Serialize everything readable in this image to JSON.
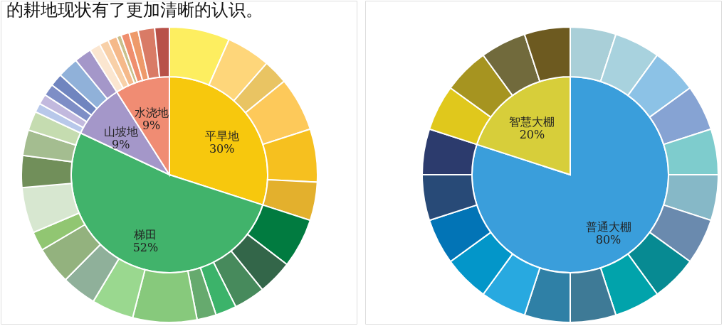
{
  "chart_data": [
    {
      "type": "pie",
      "annotations": [
        "的耕地现状有了更加清晰的认识。"
      ],
      "series": [
        {
          "values": [
            30,
            52,
            9,
            9
          ],
          "value_labels": [
            "平旱地\n30%",
            "梯田\n52%",
            "山坡地\n9%",
            "水浇地\n9%"
          ],
          "colors": [
            "#f7c80d",
            "#41b36b",
            "#a497c9",
            "#f08c73"
          ]
        },
        {
          "values": [
            6.6,
            4.8,
            2.7,
            5.9,
            5.8,
            4.2,
            5.4,
            3.8,
            3.4,
            2.3,
            2.1,
            7.0,
            4.6,
            3.8,
            4.1,
            2.1,
            5.0,
            3.5,
            2.8,
            2.1,
            1.0,
            1.1,
            1.3,
            1.4,
            2.3,
            1.9,
            1.2,
            1.0,
            1.0,
            0.5,
            0.9,
            1.0,
            1.8,
            1.6
          ],
          "colors": [
            "#fdee60",
            "#fed67a",
            "#e9c463",
            "#fdc95a",
            "#f6c01f",
            "#e3b02d",
            "#017b40",
            "#336649",
            "#478a5c",
            "#3cb36a",
            "#66aa6e",
            "#87c97c",
            "#9ad88f",
            "#8fb09a",
            "#93b27e",
            "#91c672",
            "#d7e7d0",
            "#718f5a",
            "#a4bd90",
            "#c5dcb0",
            "#b8c8ea",
            "#c2b9de",
            "#7e8ec6",
            "#7085bf",
            "#90b1d9",
            "#a497c9",
            "#fbe6d0",
            "#f8d0a8",
            "#f5b98a",
            "#c9c08c",
            "#ef8e6e",
            "#ee9a6a",
            "#d97b66",
            "#b85149"
          ]
        }
      ]
    },
    {
      "type": "pie",
      "series": [
        {
          "values": [
            80,
            20
          ],
          "value_labels": [
            "普通大棚\n80%",
            "智慧大棚\n20%"
          ],
          "colors": [
            "#3a9edb",
            "#d7ce3a"
          ]
        },
        {
          "values": [
            5,
            5,
            5,
            5,
            5,
            5,
            5,
            5,
            5,
            5,
            5,
            5,
            5,
            5,
            5,
            5,
            5,
            5,
            5,
            5
          ],
          "colors": [
            "#a9cfd8",
            "#a8d2de",
            "#8cc2e6",
            "#86a3d3",
            "#7ecccd",
            "#86b8c7",
            "#6a8aae",
            "#078a92",
            "#01a3ab",
            "#3e7a96",
            "#2f80a6",
            "#28a9e0",
            "#0396c9",
            "#0274b6",
            "#284a77",
            "#2c3b6d",
            "#e0c81c",
            "#a69420",
            "#716a3c",
            "#6d5a20"
          ]
        }
      ]
    }
  ]
}
